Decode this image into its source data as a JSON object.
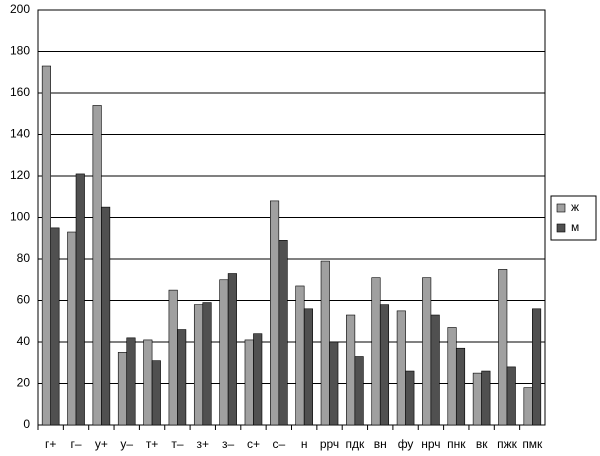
{
  "chart_data": {
    "type": "bar",
    "categories": [
      "г+",
      "г–",
      "у+",
      "у–",
      "т+",
      "т–",
      "з+",
      "з–",
      "с+",
      "с–",
      "н",
      "ррч",
      "пдк",
      "вн",
      "фу",
      "нрч",
      "пнк",
      "вк",
      "пжк",
      "пмк"
    ],
    "series": [
      {
        "name": "ж",
        "color": "#a0a0a0",
        "values": [
          173,
          93,
          154,
          35,
          41,
          65,
          58,
          70,
          41,
          108,
          67,
          79,
          53,
          71,
          55,
          71,
          47,
          25,
          75,
          18
        ]
      },
      {
        "name": "м",
        "color": "#505050",
        "values": [
          95,
          121,
          105,
          42,
          31,
          46,
          59,
          73,
          44,
          89,
          56,
          40,
          33,
          58,
          26,
          53,
          37,
          26,
          28,
          56
        ]
      }
    ],
    "ylim": [
      0,
      200
    ],
    "yticks": [
      0,
      20,
      40,
      60,
      80,
      100,
      120,
      140,
      160,
      180,
      200
    ],
    "grid": true,
    "legend": "right"
  }
}
